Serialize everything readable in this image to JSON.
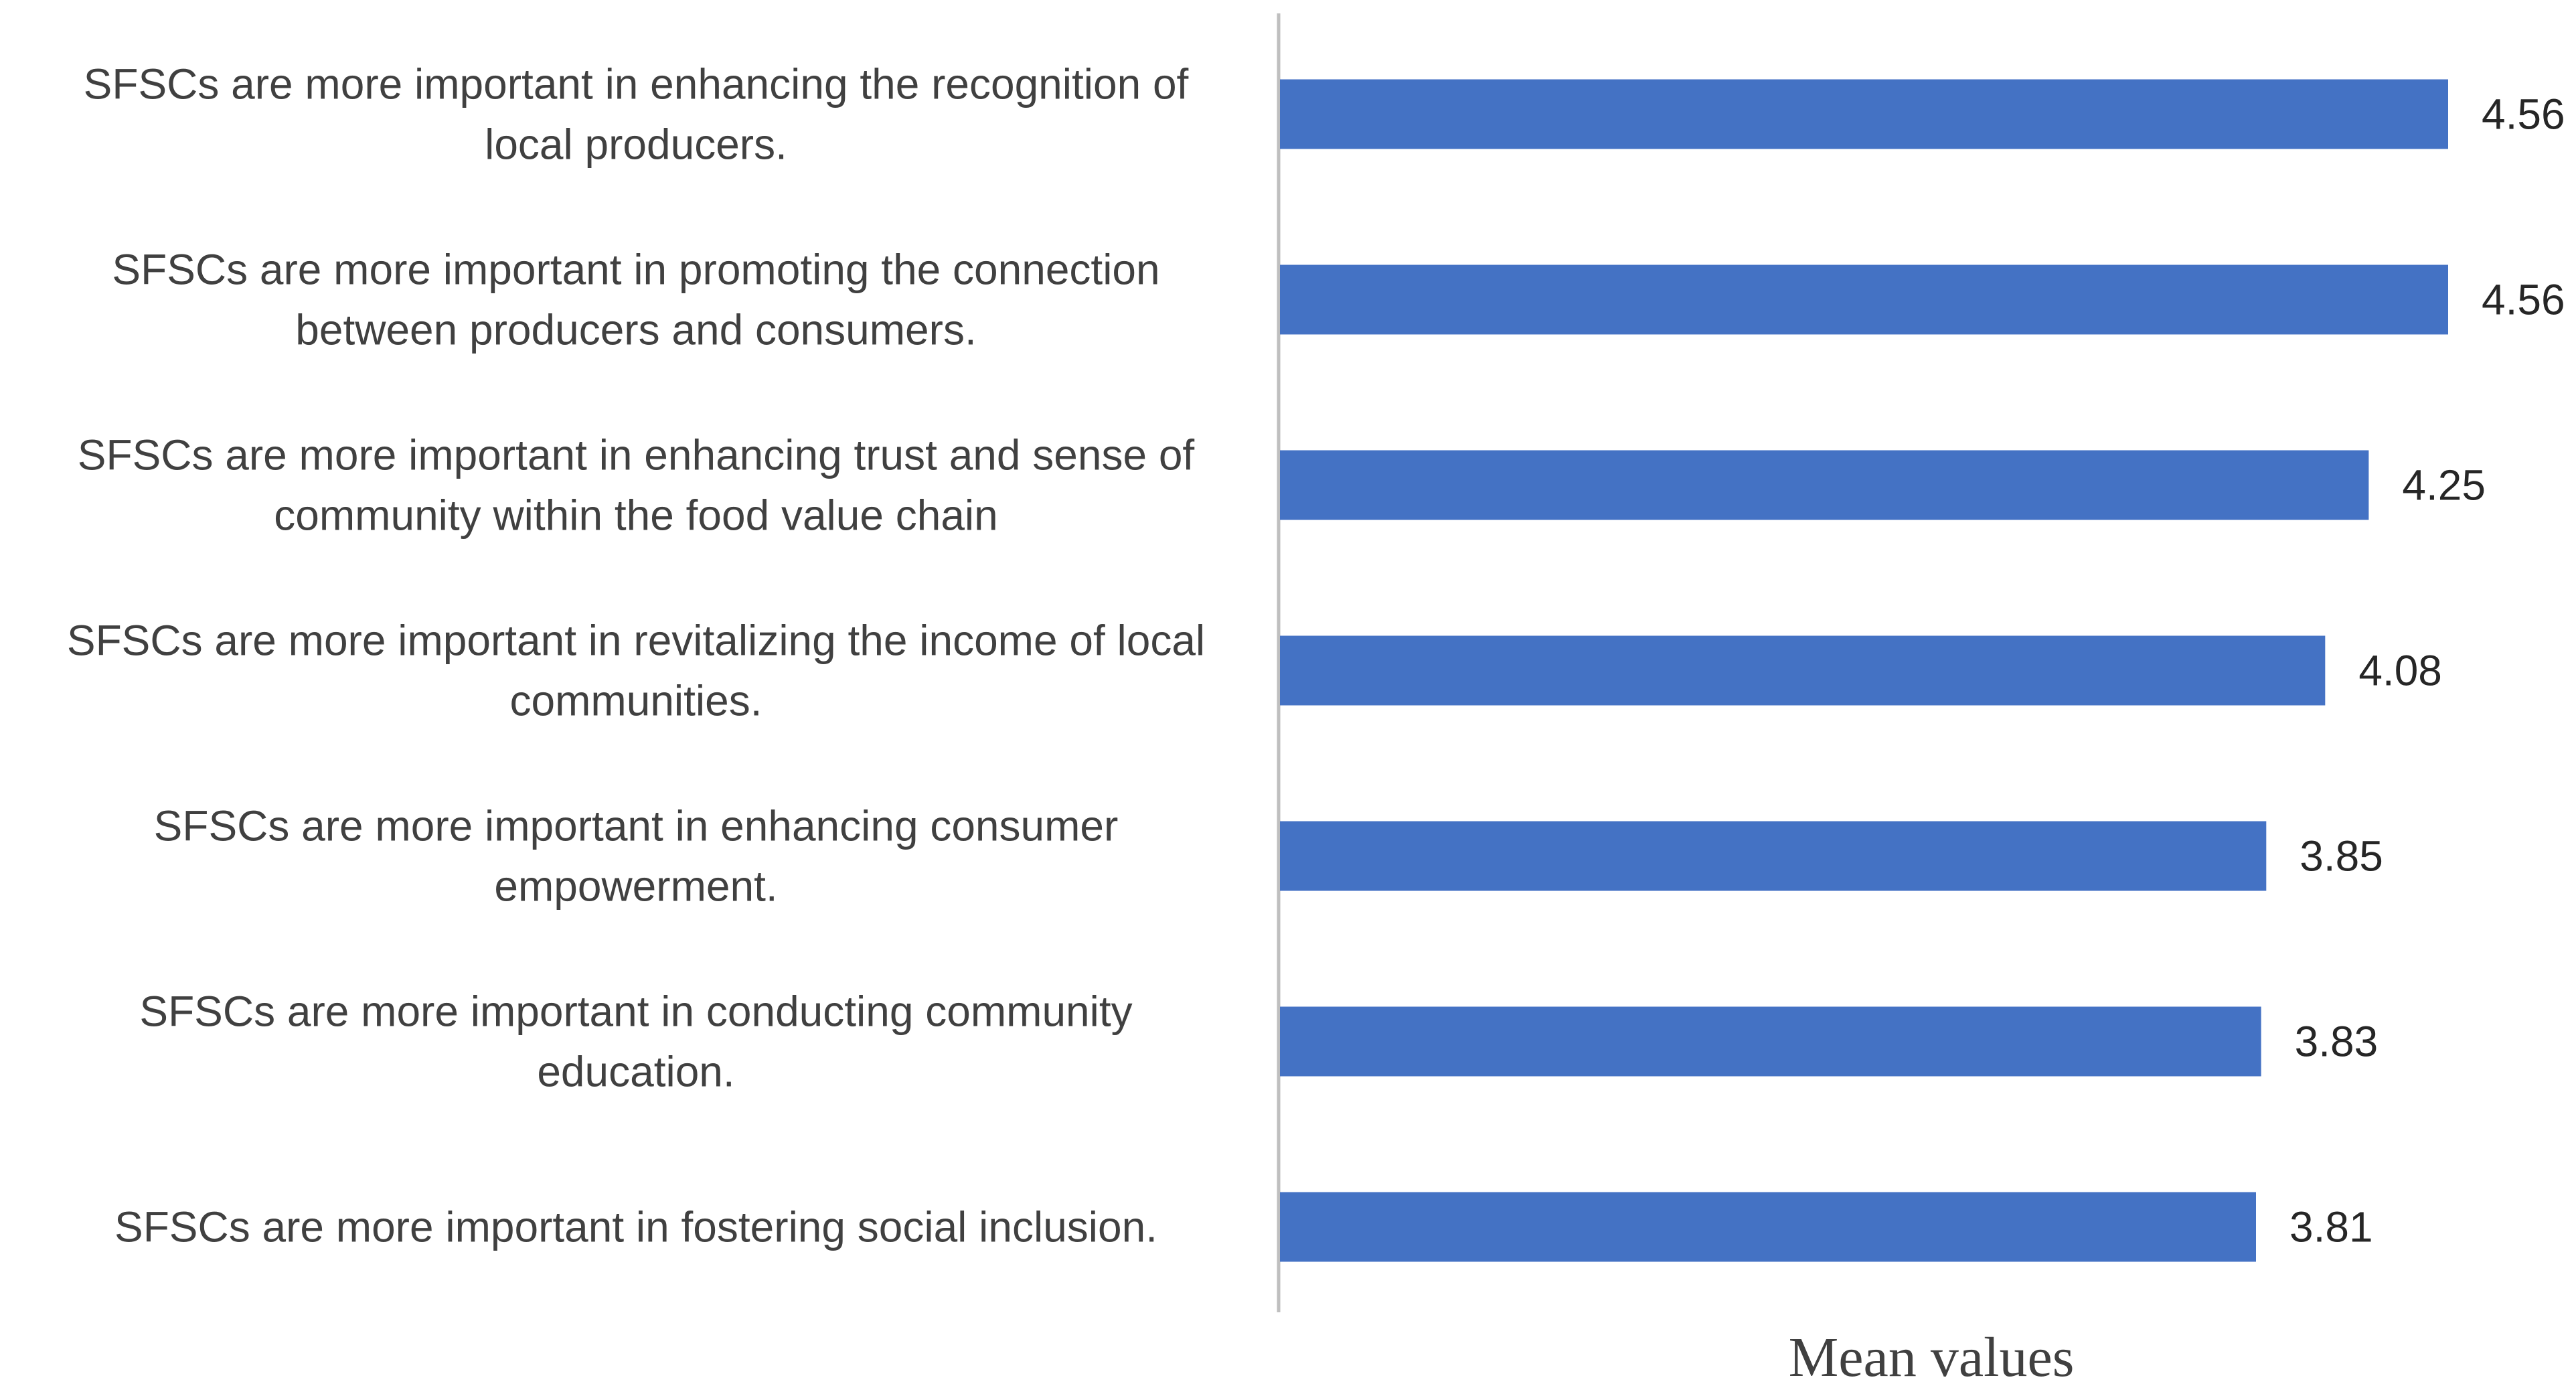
{
  "chart_data": {
    "type": "bar",
    "orientation": "horizontal",
    "categories": [
      [
        "SFSCs are more important in enhancing the recognition of",
        "local producers."
      ],
      [
        "SFSCs are more important in promoting the connection",
        "between producers and consumers."
      ],
      [
        "SFSCs are more important in enhancing trust and sense of",
        "community within the food value chain"
      ],
      [
        "SFSCs are more important in revitalizing the income of local",
        "communities."
      ],
      [
        "SFSCs are more important in enhancing consumer",
        "empowerment."
      ],
      [
        "SFSCs are more important in conducting community",
        "education."
      ],
      [
        "SFSCs are more important in fostering social inclusion."
      ]
    ],
    "values": [
      4.56,
      4.56,
      4.25,
      4.08,
      3.85,
      3.83,
      3.81
    ],
    "value_labels": [
      "4.56",
      "4.56",
      "4.25",
      "4.08",
      "3.85",
      "3.83",
      "3.81"
    ],
    "xlabel": "Mean values",
    "ylabel": "",
    "xlim": [
      0,
      4.56
    ],
    "bar_color": "#4472C4",
    "axis_color": "#BFBFBF",
    "grid": false,
    "legend": "none"
  }
}
